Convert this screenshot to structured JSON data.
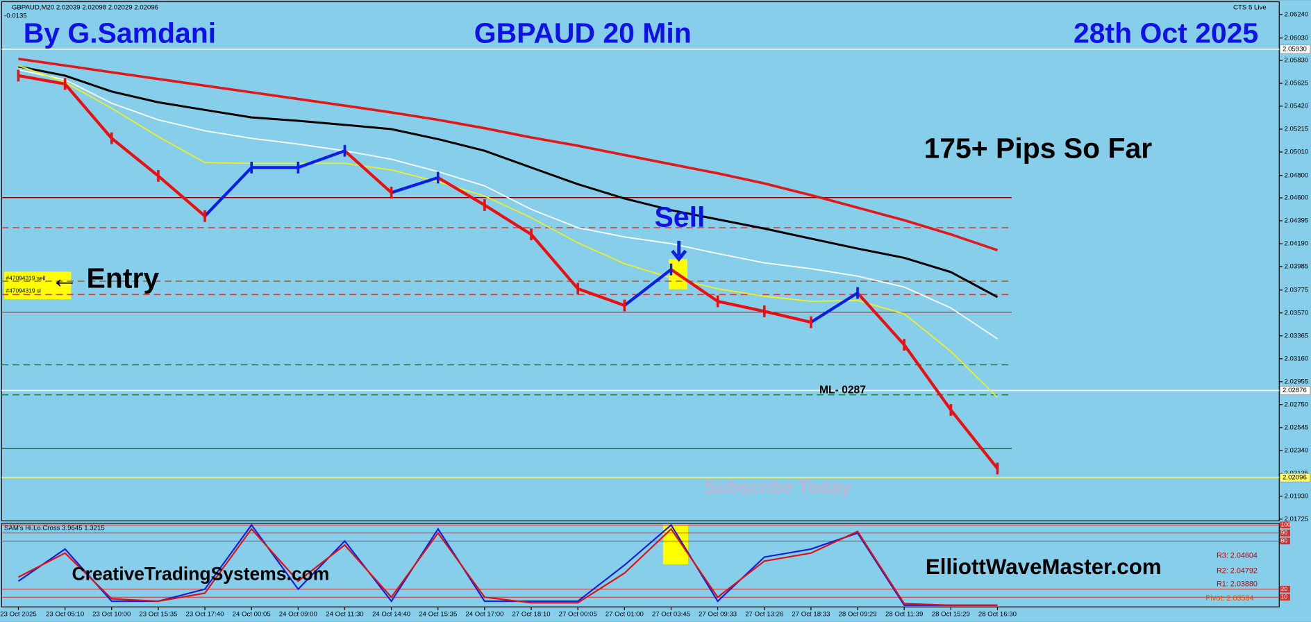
{
  "chart_data": {
    "type": "line",
    "symbol_info": "GBPAUD,M20  2.02039 2.02098 2.02029 2.02096",
    "change": "-0.0135",
    "broker": "CTS 5 Live",
    "author": "By G.Samdani",
    "title": "GBPAUD 20 Min",
    "date": "28th Oct 2025",
    "annotations": [
      "175+ Pips So Far",
      "Sell",
      "← Entry",
      "#47094319 sell",
      "#47094319 sl",
      "ML- 0287",
      "Subscribe Today",
      "CreativeTradingSystems.com",
      "ElliottWaveMaster.com"
    ],
    "pivots": [
      "R3: 2.04604",
      "R2: 2.04792",
      "R1: 2.03880",
      "Pivot: 2.03584"
    ],
    "categories": [
      "23 Oct 2025",
      "23 Oct 05:10",
      "23 Oct 10:00",
      "23 Oct 15:35",
      "23 Oct 17:40",
      "24 Oct 00:05",
      "24 Oct 09:00",
      "24 Oct 11:30",
      "24 Oct 14:40",
      "24 Oct 15:35",
      "24 Oct 17:00",
      "27 Oct 18:10",
      "27 Oct 00:05",
      "27 Oct 01:00",
      "27 Oct 03:45",
      "27 Oct 09:33",
      "27 Oct 13:26",
      "27 Oct 18:33",
      "28 Oct 09:29",
      "28 Oct 11:39",
      "28 Oct 15:29",
      "28 Oct 16:30"
    ],
    "price": {
      "up_color": "#0a1ee6",
      "down_color": "#e81010",
      "values": [
        2.05694,
        2.05619,
        2.05133,
        2.04796,
        2.04437,
        2.04871,
        2.04871,
        2.05021,
        2.04647,
        2.04781,
        2.04535,
        2.04273,
        2.03787,
        2.03637,
        2.03959,
        2.03674,
        2.03585,
        2.03487,
        2.03749,
        2.03285,
        2.02702,
        2.02178
      ]
    },
    "series": [
      {
        "color": "#e01818",
        "width": 3,
        "values": [
          2.05844,
          2.05784,
          2.05724,
          2.05664,
          2.05604,
          2.05544,
          2.05485,
          2.05425,
          2.05365,
          2.05298,
          2.05223,
          2.0514,
          2.05066,
          2.04983,
          2.04901,
          2.04819,
          2.04729,
          2.04624,
          2.04512,
          2.044,
          2.04273,
          2.04131
        ]
      },
      {
        "color": "#000000",
        "width": 2.5,
        "values": [
          2.05776,
          2.05694,
          2.05552,
          2.05455,
          2.05387,
          2.0532,
          2.0529,
          2.05253,
          2.05215,
          2.05125,
          2.05021,
          2.04871,
          2.04722,
          2.04594,
          2.0449,
          2.04407,
          2.04325,
          2.04235,
          2.04146,
          2.04063,
          2.03936,
          2.03712
        ]
      },
      {
        "color": "#ffffff",
        "width": 1.5,
        "values": [
          2.05746,
          2.05657,
          2.05447,
          2.05298,
          2.052,
          2.05133,
          2.05081,
          2.05021,
          2.04946,
          2.04834,
          2.04707,
          2.04497,
          2.04333,
          2.0425,
          2.0419,
          2.04101,
          2.04018,
          2.03966,
          2.03899,
          2.03802,
          2.03615,
          2.03338
        ]
      },
      {
        "color": "#f0f020",
        "width": 1.5,
        "values": [
          2.05784,
          2.05634,
          2.05402,
          2.05148,
          2.04916,
          2.04909,
          2.04909,
          2.04909,
          2.04849,
          2.04744,
          2.04617,
          2.04422,
          2.04198,
          2.04011,
          2.03884,
          2.03787,
          2.03719,
          2.03674,
          2.03682,
          2.03562,
          2.03226,
          2.02814
        ]
      }
    ],
    "levels": [
      {
        "value": 2.0593,
        "label": "2.05930",
        "color": "#ffffff",
        "style": "solid"
      },
      {
        "value": 2.04602,
        "color": "#8b0000",
        "style": "solid"
      },
      {
        "value": 2.04333,
        "color": "#c04040",
        "style": "dashed"
      },
      {
        "value": 2.03854,
        "color": "#a0522d",
        "style": "dashed"
      },
      {
        "value": 2.03734,
        "color": "#c04040",
        "style": "dashed"
      },
      {
        "value": 2.03577,
        "color": "#e03010",
        "style": "solid"
      },
      {
        "value": 2.03106,
        "color": "#1a7a3a",
        "style": "dashed"
      },
      {
        "value": 2.02876,
        "label": "2.02876",
        "color": "#ffffff",
        "style": "solid"
      },
      {
        "value": 2.02837,
        "color": "#1a7a3a",
        "style": "dashed"
      },
      {
        "value": 2.02358,
        "color": "#0a5a2a",
        "style": "solid"
      },
      {
        "value": 2.02096,
        "label": "2.02096",
        "color": "#ffff66",
        "style": "solid"
      }
    ],
    "ylim": [
      2.0171,
      2.0634
    ],
    "yticks": [
      {
        "value": 2.0624,
        "label": "2.06240"
      },
      {
        "value": 2.0603,
        "label": "2.06030"
      },
      {
        "value": 2.0583,
        "label": "2.05830"
      },
      2.05625,
      {
        "value": 2.0542,
        "label": "2.05420"
      },
      2.05215,
      {
        "value": 2.0501,
        "label": "2.05010"
      },
      {
        "value": 2.048,
        "label": "2.04800"
      },
      {
        "value": 2.046,
        "label": "2.04600"
      },
      2.04395,
      {
        "value": 2.0419,
        "label": "2.04190"
      },
      2.03985,
      2.03775,
      {
        "value": 2.0357,
        "label": "2.03570"
      },
      2.03365,
      {
        "value": 2.0316,
        "label": "2.03160"
      },
      2.02955,
      {
        "value": 2.0275,
        "label": "2.02750"
      },
      2.02545,
      {
        "value": 2.0234,
        "label": "2.02340"
      },
      2.02135,
      {
        "value": 2.0193,
        "label": "2.01930"
      },
      2.01725
    ],
    "oscillator": {
      "name": "SAM's Hi.Lo.Cross 3.9645 1.3215",
      "ylim": [
        0,
        100
      ],
      "yticks": [
        10,
        20,
        80,
        90,
        100
      ],
      "series": [
        {
          "color": "#1020e0",
          "values": [
            30,
            70,
            5,
            5,
            20,
            100,
            20,
            80,
            5,
            95,
            5,
            5,
            5,
            50,
            100,
            5,
            60,
            70,
            90,
            0,
            0,
            0
          ]
        },
        {
          "color": "#e01010",
          "values": [
            35,
            65,
            8,
            5,
            15,
            95,
            30,
            75,
            10,
            90,
            10,
            3,
            3,
            40,
            95,
            10,
            55,
            65,
            92,
            2,
            0,
            0
          ]
        }
      ]
    }
  }
}
